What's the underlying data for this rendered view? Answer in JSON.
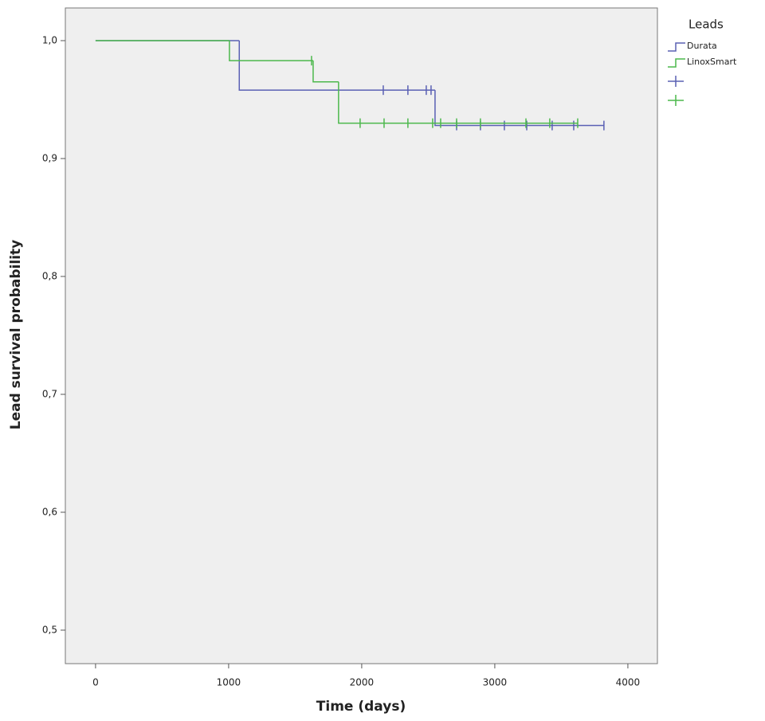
{
  "chart_data": {
    "type": "survival",
    "x_label": "Time (days)",
    "y_label": "Lead survival probability",
    "legend_title": "Leads",
    "legend": "right",
    "background": "#efefef",
    "xlim": [
      -227,
      4222
    ],
    "xticks": [
      0,
      1000,
      2000,
      3000,
      4000
    ],
    "ylim": [
      0.4716,
      1.0277
    ],
    "yticks": [
      {
        "value": 0.5,
        "label": "0,5"
      },
      {
        "value": 0.6,
        "label": "0,6"
      },
      {
        "value": 0.7,
        "label": "0,7"
      },
      {
        "value": 0.8,
        "label": "0,8"
      },
      {
        "value": 0.9,
        "label": "0,9"
      },
      {
        "value": 1.0,
        "label": "1,0"
      }
    ],
    "series": [
      {
        "name": "Durata",
        "color": "#5a60b4",
        "x": [
          0,
          1080,
          2551,
          3820
        ],
        "values": [
          1.0,
          0.958,
          0.928,
          0.928
        ],
        "censor_x": [
          2162,
          2347,
          2485,
          2521,
          2713,
          2892,
          3072,
          3240,
          3431,
          3593,
          3820
        ],
        "censor_values": [
          0.958,
          0.958,
          0.958,
          0.958,
          0.928,
          0.928,
          0.928,
          0.928,
          0.928,
          0.928,
          0.928
        ]
      },
      {
        "name": "LinoxSmart",
        "color": "#4cb84c",
        "x": [
          0,
          1006,
          1635,
          1826,
          3623
        ],
        "values": [
          1.0,
          0.983,
          0.965,
          0.93,
          0.93
        ],
        "censor_x": [
          1623,
          1988,
          2168,
          2347,
          2533,
          2593,
          2713,
          2892,
          3234,
          3413,
          3623
        ],
        "censor_values": [
          0.983,
          0.93,
          0.93,
          0.93,
          0.93,
          0.93,
          0.93,
          0.93,
          0.93,
          0.93,
          0.93
        ]
      }
    ]
  }
}
